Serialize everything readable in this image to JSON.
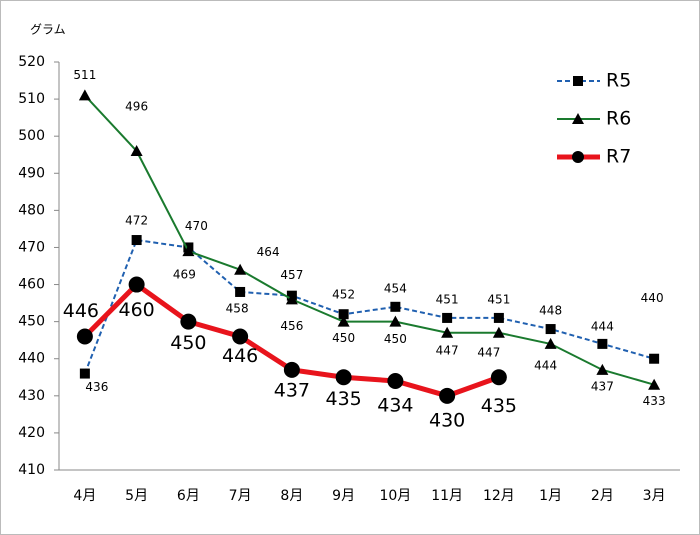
{
  "chart_data": {
    "type": "line",
    "unit_label": "グラム",
    "categories": [
      "4月",
      "5月",
      "6月",
      "7月",
      "8月",
      "9月",
      "10月",
      "11月",
      "12月",
      "1月",
      "2月",
      "3月"
    ],
    "series": [
      {
        "name": "R5",
        "color": "#2060b0",
        "marker": "square",
        "dash": true,
        "values": [
          436,
          472,
          470,
          458,
          457,
          452,
          454,
          451,
          451,
          448,
          444,
          440
        ]
      },
      {
        "name": "R6",
        "color": "#1a7a2e",
        "marker": "triangle",
        "dash": false,
        "values": [
          511,
          496,
          469,
          464,
          456,
          450,
          450,
          447,
          447,
          444,
          437,
          433
        ]
      },
      {
        "name": "R7",
        "color": "#e8141c",
        "marker": "circle",
        "dash": false,
        "values": [
          446,
          460,
          450,
          446,
          437,
          435,
          434,
          430,
          435,
          null,
          null,
          null
        ]
      }
    ],
    "marker_color": "#000000",
    "ylim": [
      410,
      520
    ],
    "yticks": [
      410,
      420,
      430,
      440,
      450,
      460,
      470,
      480,
      490,
      500,
      510,
      520
    ],
    "legend": "upper right"
  }
}
